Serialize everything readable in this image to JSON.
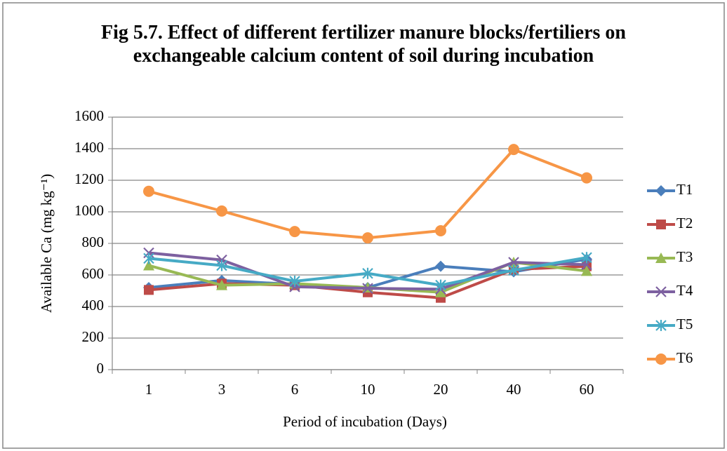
{
  "chart_data": {
    "type": "line",
    "title": "Fig 5.7. Effect of different fertilizer manure blocks/fertiliers on exchangeable calcium content of soil during incubation",
    "x_label": "Period of incubation (Days)",
    "y_label": "Available Ca (mg kg⁻¹)",
    "categories": [
      "1",
      "3",
      "6",
      "10",
      "20",
      "40",
      "60"
    ],
    "ylim": [
      0,
      1600
    ],
    "yticks": [
      0,
      200,
      400,
      600,
      800,
      1000,
      1200,
      1400,
      1600
    ],
    "grid": true,
    "legend": "right",
    "series": [
      {
        "name": "T1",
        "color": "#4a7ebb",
        "marker": "diamond",
        "values": [
          520,
          565,
          540,
          520,
          655,
          620,
          700
        ]
      },
      {
        "name": "T2",
        "color": "#be4b48",
        "marker": "square",
        "values": [
          505,
          545,
          535,
          490,
          455,
          635,
          655
        ]
      },
      {
        "name": "T3",
        "color": "#98b954",
        "marker": "triangle",
        "values": [
          660,
          535,
          545,
          520,
          490,
          680,
          625
        ]
      },
      {
        "name": "T4",
        "color": "#7d60a0",
        "marker": "x",
        "values": [
          740,
          695,
          525,
          515,
          510,
          680,
          665
        ]
      },
      {
        "name": "T5",
        "color": "#46aac5",
        "marker": "star",
        "values": [
          705,
          660,
          560,
          610,
          535,
          630,
          710
        ]
      },
      {
        "name": "T6",
        "color": "#f79646",
        "marker": "circle",
        "values": [
          1130,
          1005,
          875,
          835,
          880,
          1395,
          1215
        ]
      }
    ]
  }
}
